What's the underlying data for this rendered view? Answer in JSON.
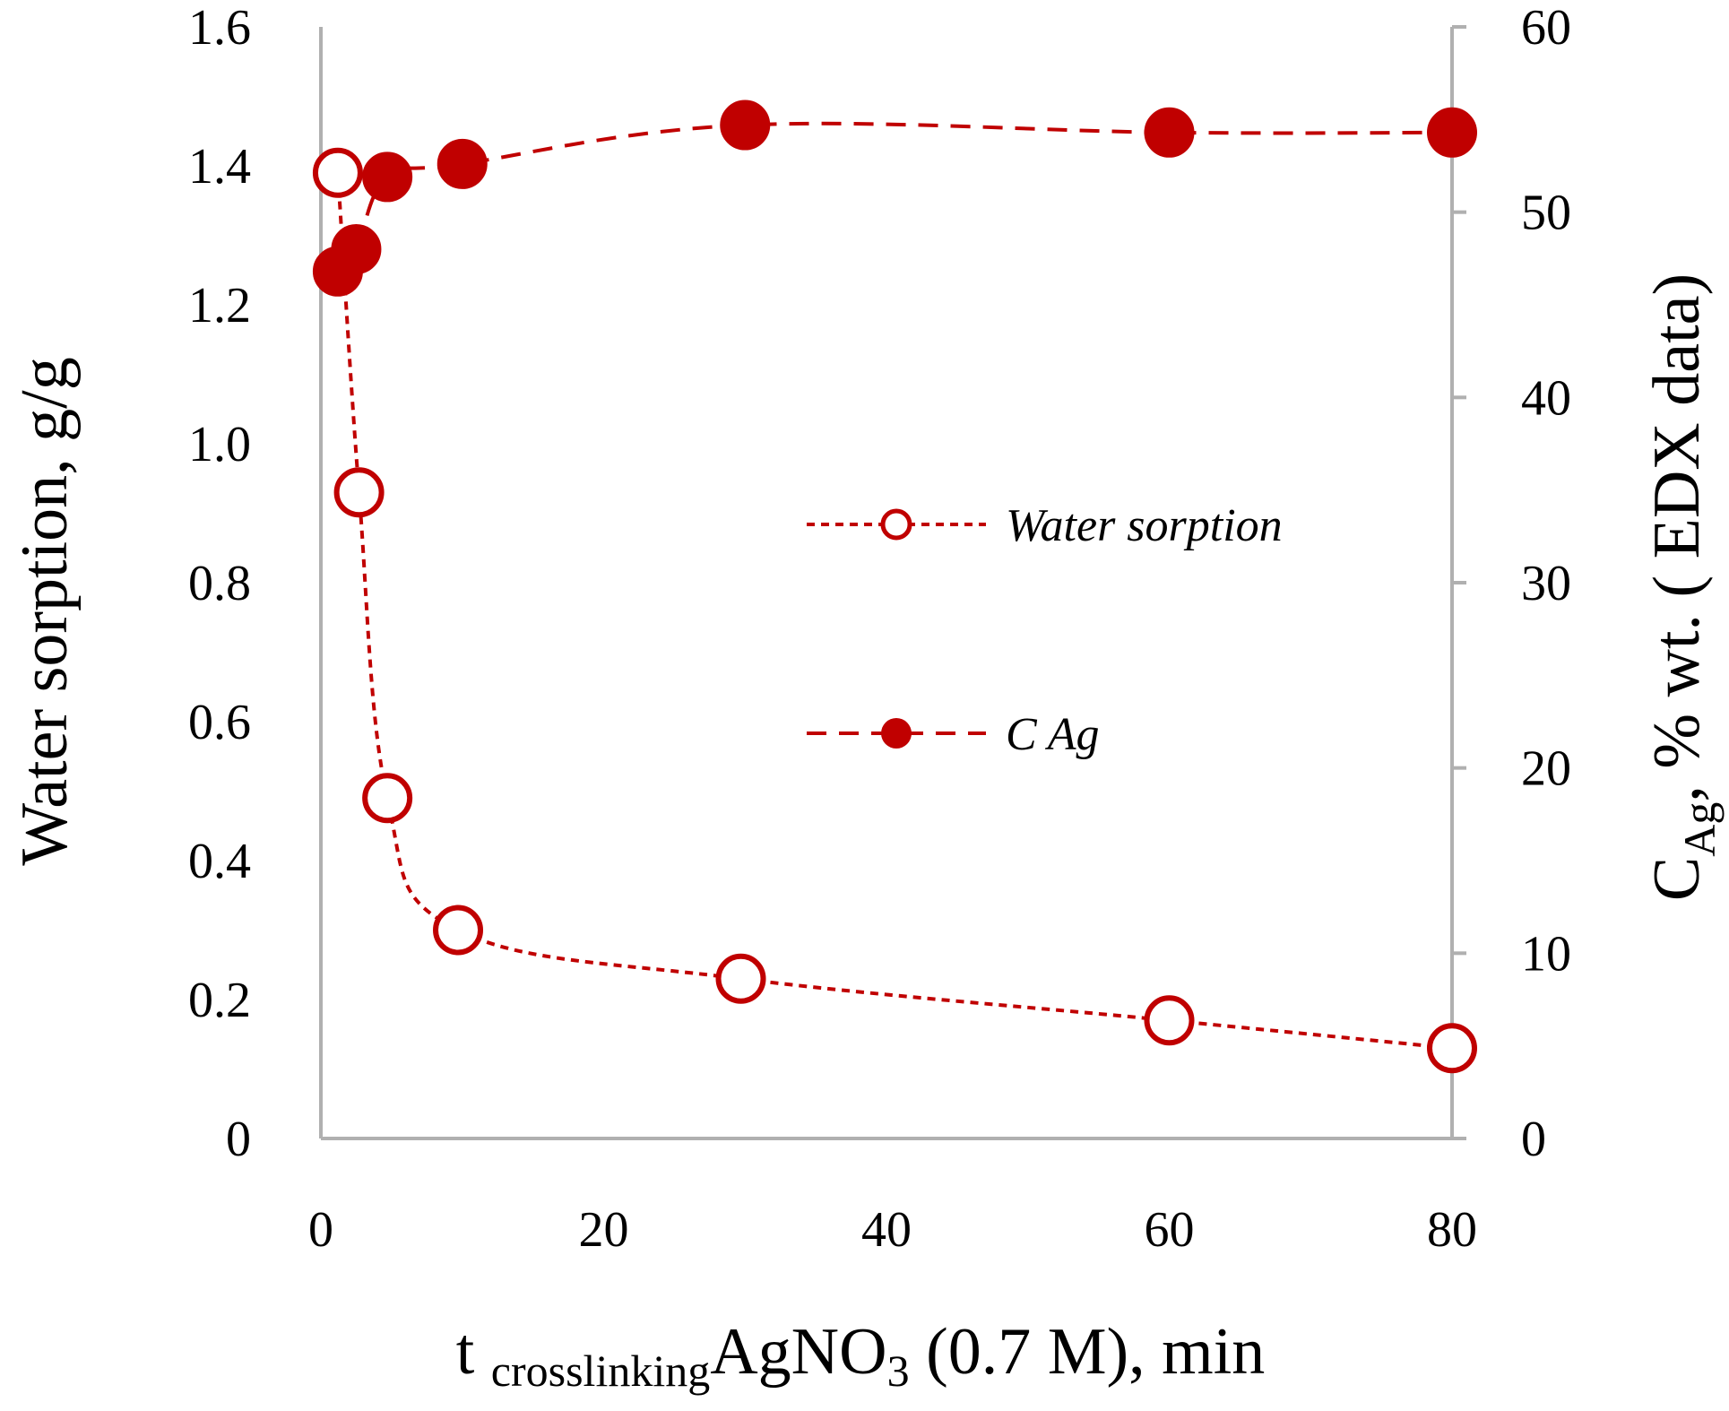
{
  "chart_data": {
    "type": "line",
    "xlabel_parts": {
      "main": "t",
      "subscript": "crosslinking",
      "reagent": "AgNO",
      "reagent_sub": "3",
      "rest": "(0.7 M), min"
    },
    "ylabel_left": "Water sorption, g/g",
    "ylabel_right_parts": {
      "main": "C",
      "subscript": "Ag",
      "rest": ", % wt. ( EDX data)"
    },
    "x_range": [
      0,
      80
    ],
    "x_ticks": [
      "0",
      "20",
      "40",
      "60",
      "80"
    ],
    "y_left_range": [
      0,
      1.6
    ],
    "y_left_ticks": [
      "0",
      "0.2",
      "0.4",
      "0.6",
      "0.8",
      "1.0",
      "1.2",
      "1.4",
      "1.6"
    ],
    "y_right_range": [
      0,
      60
    ],
    "y_right_ticks": [
      "0",
      "10",
      "20",
      "30",
      "40",
      "50",
      "60"
    ],
    "grid": false,
    "legend_position": "center-right",
    "series": [
      {
        "name": "Water sorption",
        "axis": "left",
        "marker": "open-circle",
        "line": "dotted",
        "color": "#c00000",
        "points": [
          {
            "x": 1.2,
            "y": 1.39
          },
          {
            "x": 2.7,
            "y": 0.93
          },
          {
            "x": 4.7,
            "y": 0.49
          },
          {
            "x": 9.7,
            "y": 0.3
          },
          {
            "x": 29.7,
            "y": 0.23
          },
          {
            "x": 60,
            "y": 0.17
          },
          {
            "x": 80,
            "y": 0.13
          }
        ]
      },
      {
        "name": "C Ag",
        "axis": "right",
        "marker": "filled-circle",
        "line": "dashed",
        "color": "#c00000",
        "points": [
          {
            "x": 1.2,
            "y": 46.8
          },
          {
            "x": 2.5,
            "y": 48.0
          },
          {
            "x": 4.7,
            "y": 51.9
          },
          {
            "x": 10,
            "y": 52.6
          },
          {
            "x": 30,
            "y": 54.7
          },
          {
            "x": 60,
            "y": 54.3
          },
          {
            "x": 80,
            "y": 54.3
          }
        ]
      }
    ],
    "legend": [
      {
        "label": "Water sorption",
        "marker": "open-circle",
        "line": "dotted"
      },
      {
        "label": "C Ag",
        "marker": "filled-circle",
        "line": "dashed"
      }
    ]
  }
}
